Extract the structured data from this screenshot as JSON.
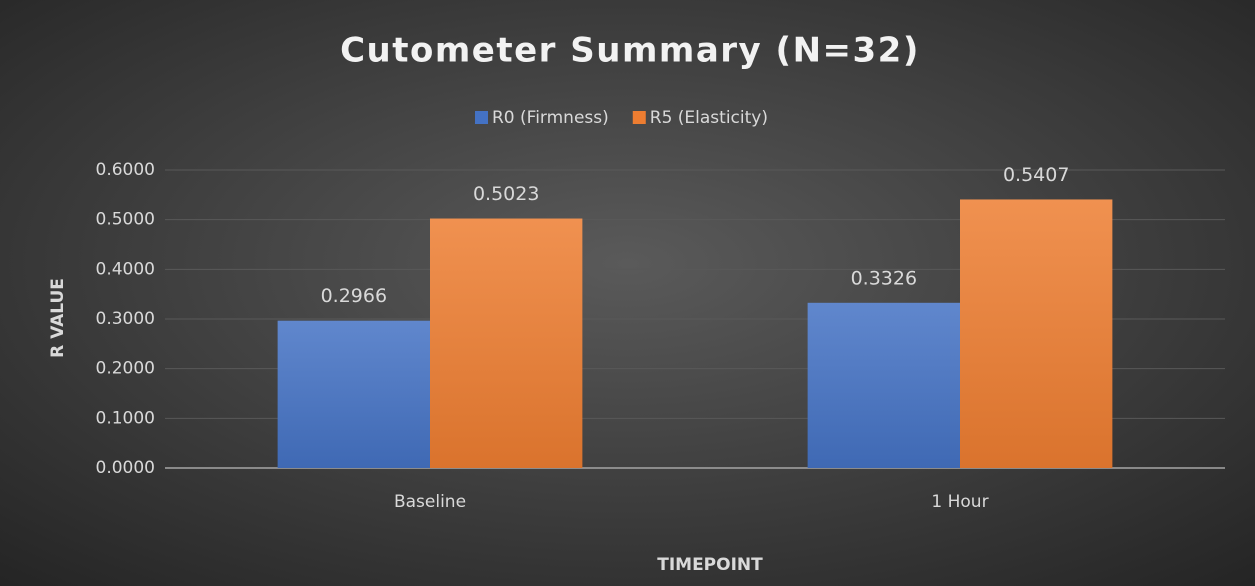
{
  "chart_data": {
    "type": "bar",
    "title": "Cutometer Summary (N=32)",
    "x_label": "TIMEPOINT",
    "y_label": "R VALUE",
    "categories": [
      "Baseline",
      "1 Hour"
    ],
    "series": [
      {
        "name": "R0 (Firmness)",
        "color": "#4472c4",
        "values": [
          0.2966,
          0.3326
        ]
      },
      {
        "name": "R5 (Elasticity)",
        "color": "#ed7d31",
        "values": [
          0.5023,
          0.5407
        ]
      }
    ],
    "ylim": [
      0,
      0.6
    ],
    "yticks": [
      {
        "value": 0,
        "label": "0.0000"
      },
      {
        "value": 0.1,
        "label": "0.1000"
      },
      {
        "value": 0.2,
        "label": "0.2000"
      },
      {
        "value": 0.3,
        "label": "0.3000"
      },
      {
        "value": 0.4,
        "label": "0.4000"
      },
      {
        "value": 0.5,
        "label": "0.5000"
      },
      {
        "value": 0.6,
        "label": "0.6000"
      }
    ],
    "grid": true,
    "legend": "top"
  }
}
